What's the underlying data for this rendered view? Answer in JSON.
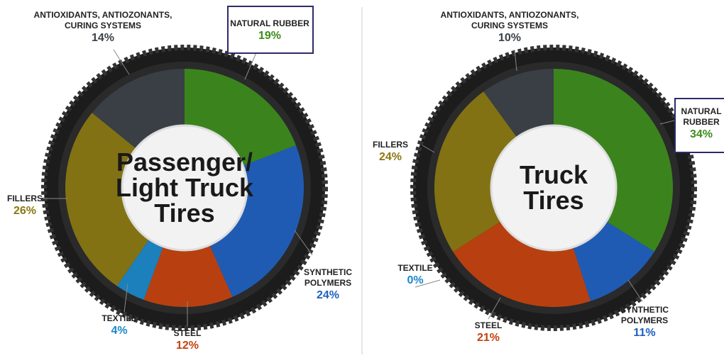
{
  "chart_data": [
    {
      "type": "donut",
      "title": "Passenger/ Light Truck Tires",
      "categories": [
        "NATURAL RUBBER",
        "SYNTHETIC POLYMERS",
        "STEEL",
        "TEXTILE",
        "FILLERS",
        "ANTIOXIDANTS, ANTIOZONANTS, CURING SYSTEMS"
      ],
      "values": [
        19,
        24,
        12,
        4,
        26,
        14
      ],
      "value_labels": [
        "19%",
        "24%",
        "12%",
        "4%",
        "26%",
        "14%"
      ],
      "colors": [
        "#3d8c1c",
        "#1f5fbf",
        "#c4420e",
        "#1a88c9",
        "#8a7812",
        "#3b4148"
      ]
    },
    {
      "type": "donut",
      "title": "Truck Tires",
      "categories": [
        "NATURAL RUBBER",
        "SYNTHETIC POLYMERS",
        "STEEL",
        "TEXTILE",
        "FILLERS",
        "ANTIOXIDANTS, ANTIOZONANTS, CURING SYSTEMS"
      ],
      "values": [
        34,
        11,
        21,
        0,
        24,
        10
      ],
      "value_labels": [
        "34%",
        "11%",
        "21%",
        "0%",
        "24%",
        "10%"
      ],
      "colors": [
        "#3d8c1c",
        "#1f5fbf",
        "#c4420e",
        "#1a88c9",
        "#8a7812",
        "#3b4148"
      ]
    }
  ]
}
